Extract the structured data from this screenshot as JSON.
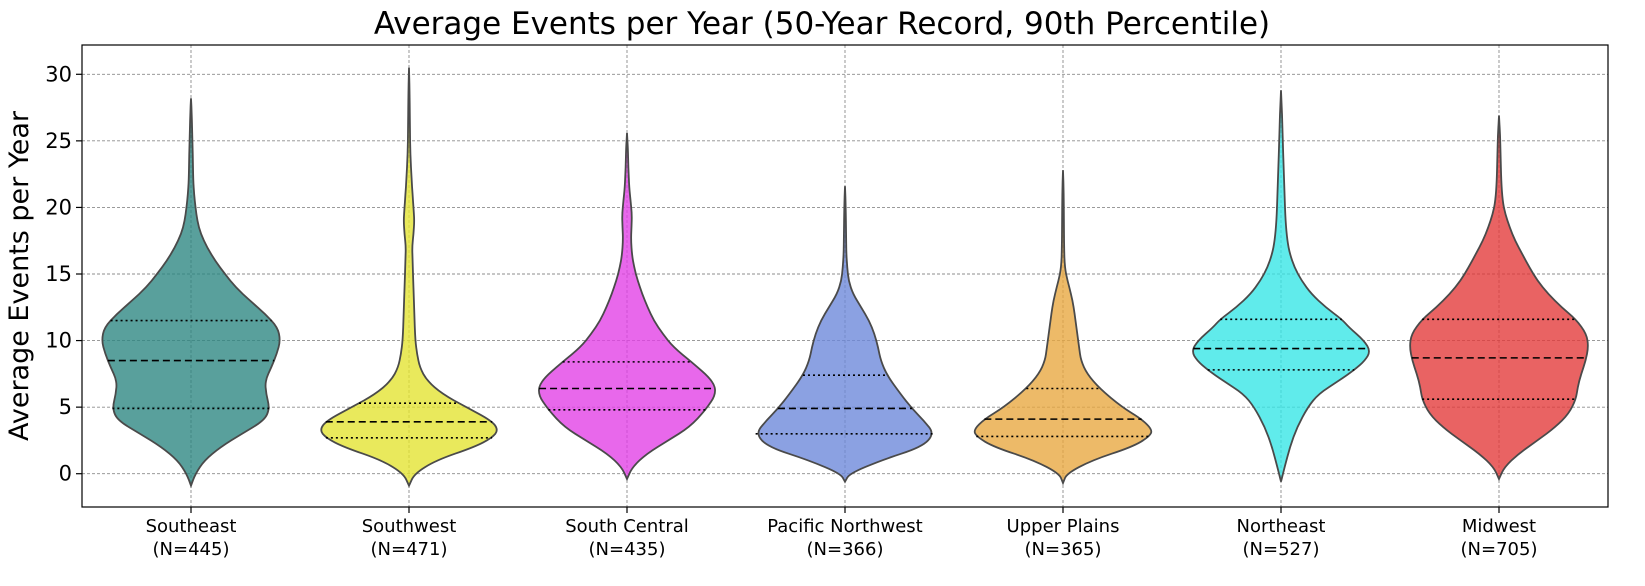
{
  "chart_data": {
    "type": "violin",
    "title": "Average Events per Year (50-Year Record, 90th Percentile)",
    "xlabel": "",
    "ylabel": "Average Events per Year",
    "ylim": [
      -2.5,
      32.2
    ],
    "yticks": [
      0,
      5,
      10,
      15,
      20,
      25,
      30
    ],
    "grid": true,
    "legend": "none",
    "categories": [
      {
        "name": "Southeast",
        "n_label": "(N=445)",
        "color": "#2a8580",
        "min": -0.9,
        "max": 28.2,
        "q1": 4.9,
        "median": 8.5,
        "q3": 11.5,
        "profile": [
          [
            -0.9,
            0
          ],
          [
            0,
            0.05
          ],
          [
            1,
            0.15
          ],
          [
            2,
            0.33
          ],
          [
            3,
            0.57
          ],
          [
            4,
            0.82
          ],
          [
            4.9,
            0.88
          ],
          [
            6,
            0.84
          ],
          [
            7,
            0.83
          ],
          [
            8,
            0.9
          ],
          [
            9,
            0.96
          ],
          [
            10,
            1.0
          ],
          [
            11,
            0.97
          ],
          [
            12,
            0.83
          ],
          [
            13,
            0.66
          ],
          [
            14,
            0.5
          ],
          [
            15,
            0.38
          ],
          [
            16,
            0.27
          ],
          [
            17,
            0.18
          ],
          [
            18,
            0.11
          ],
          [
            19,
            0.07
          ],
          [
            20,
            0.05
          ],
          [
            21,
            0.035
          ],
          [
            22,
            0.025
          ],
          [
            24,
            0.02
          ],
          [
            26,
            0.012
          ],
          [
            27,
            0.008
          ],
          [
            28.2,
            0
          ]
        ]
      },
      {
        "name": "Southwest",
        "n_label": "(N=471)",
        "color": "#e3e32e",
        "min": -0.9,
        "max": 30.5,
        "q1": 2.7,
        "median": 3.9,
        "q3": 5.3,
        "profile": [
          [
            -0.9,
            0
          ],
          [
            0,
            0.06
          ],
          [
            1,
            0.3
          ],
          [
            2,
            0.73
          ],
          [
            2.7,
            0.93
          ],
          [
            3.3,
            1.0
          ],
          [
            4,
            0.92
          ],
          [
            5,
            0.64
          ],
          [
            6,
            0.37
          ],
          [
            7,
            0.2
          ],
          [
            8,
            0.12
          ],
          [
            9,
            0.09
          ],
          [
            10,
            0.07
          ],
          [
            12,
            0.06
          ],
          [
            14,
            0.05
          ],
          [
            16,
            0.04
          ],
          [
            17,
            0.035
          ],
          [
            18,
            0.05
          ],
          [
            19,
            0.06
          ],
          [
            20,
            0.05
          ],
          [
            21,
            0.04
          ],
          [
            22,
            0.03
          ],
          [
            24,
            0.015
          ],
          [
            26,
            0.01
          ],
          [
            28,
            0.008
          ],
          [
            30.5,
            0
          ]
        ]
      },
      {
        "name": "South Central",
        "n_label": "(N=435)",
        "color": "#e13de5",
        "min": -0.4,
        "max": 25.6,
        "q1": 4.8,
        "median": 6.4,
        "q3": 8.4,
        "profile": [
          [
            -0.4,
            0
          ],
          [
            0.5,
            0.06
          ],
          [
            1.5,
            0.22
          ],
          [
            2.5,
            0.46
          ],
          [
            3.5,
            0.7
          ],
          [
            4.8,
            0.88
          ],
          [
            6,
            1.0
          ],
          [
            7,
            0.96
          ],
          [
            8.4,
            0.72
          ],
          [
            9.5,
            0.52
          ],
          [
            10.5,
            0.4
          ],
          [
            11.5,
            0.3
          ],
          [
            12.5,
            0.23
          ],
          [
            13.5,
            0.17
          ],
          [
            14.5,
            0.12
          ],
          [
            15.5,
            0.08
          ],
          [
            16.5,
            0.055
          ],
          [
            17.5,
            0.045
          ],
          [
            18.5,
            0.05
          ],
          [
            19.5,
            0.055
          ],
          [
            20.5,
            0.04
          ],
          [
            21.5,
            0.025
          ],
          [
            23,
            0.015
          ],
          [
            24.5,
            0.01
          ],
          [
            25.6,
            0
          ]
        ]
      },
      {
        "name": "Pacific Northwest",
        "n_label": "(N=366)",
        "color": "#6a86da",
        "min": -0.6,
        "max": 21.6,
        "q1": 3.0,
        "median": 4.9,
        "q3": 7.4,
        "profile": [
          [
            -0.6,
            0
          ],
          [
            0,
            0.05
          ],
          [
            1,
            0.4
          ],
          [
            2,
            0.86
          ],
          [
            3,
            1.0
          ],
          [
            4,
            0.88
          ],
          [
            4.9,
            0.75
          ],
          [
            6,
            0.62
          ],
          [
            7.4,
            0.47
          ],
          [
            8.5,
            0.4
          ],
          [
            9.5,
            0.37
          ],
          [
            10.5,
            0.33
          ],
          [
            11.5,
            0.27
          ],
          [
            12.5,
            0.18
          ],
          [
            13.5,
            0.09
          ],
          [
            14.5,
            0.04
          ],
          [
            15.5,
            0.025
          ],
          [
            16.5,
            0.015
          ],
          [
            18,
            0.012
          ],
          [
            20,
            0.008
          ],
          [
            21.6,
            0
          ]
        ]
      },
      {
        "name": "Upper Plains",
        "n_label": "(N=365)",
        "color": "#e8a73d",
        "min": -0.7,
        "max": 22.8,
        "q1": 2.8,
        "median": 4.1,
        "q3": 6.4,
        "profile": [
          [
            -0.7,
            0
          ],
          [
            0,
            0.04
          ],
          [
            1,
            0.32
          ],
          [
            2,
            0.77
          ],
          [
            2.8,
            0.97
          ],
          [
            3.3,
            1.0
          ],
          [
            4.1,
            0.88
          ],
          [
            5,
            0.66
          ],
          [
            6.4,
            0.41
          ],
          [
            7.5,
            0.27
          ],
          [
            8.5,
            0.2
          ],
          [
            9.5,
            0.18
          ],
          [
            10.5,
            0.16
          ],
          [
            11.5,
            0.14
          ],
          [
            12.5,
            0.12
          ],
          [
            13.5,
            0.09
          ],
          [
            14.5,
            0.05
          ],
          [
            15.5,
            0.02
          ],
          [
            17,
            0.012
          ],
          [
            19,
            0.01
          ],
          [
            21,
            0.008
          ],
          [
            22.8,
            0
          ]
        ]
      },
      {
        "name": "Northeast",
        "n_label": "(N=527)",
        "color": "#33e5e5",
        "min": -0.6,
        "max": 28.8,
        "q1": 7.8,
        "median": 9.4,
        "q3": 11.6,
        "profile": [
          [
            -0.6,
            0
          ],
          [
            0.5,
            0.04
          ],
          [
            2,
            0.1
          ],
          [
            3.5,
            0.18
          ],
          [
            5,
            0.3
          ],
          [
            6,
            0.42
          ],
          [
            7,
            0.65
          ],
          [
            7.8,
            0.82
          ],
          [
            8.5,
            0.94
          ],
          [
            9.2,
            1.0
          ],
          [
            10,
            0.93
          ],
          [
            11,
            0.76
          ],
          [
            11.6,
            0.68
          ],
          [
            12.5,
            0.5
          ],
          [
            13.5,
            0.34
          ],
          [
            14.5,
            0.23
          ],
          [
            15.5,
            0.15
          ],
          [
            16.5,
            0.1
          ],
          [
            17.5,
            0.07
          ],
          [
            19,
            0.05
          ],
          [
            21,
            0.04
          ],
          [
            23,
            0.03
          ],
          [
            25,
            0.02
          ],
          [
            27,
            0.012
          ],
          [
            28.8,
            0
          ]
        ]
      },
      {
        "name": "Midwest",
        "n_label": "(N=705)",
        "color": "#e33737",
        "min": -0.4,
        "max": 26.9,
        "q1": 5.6,
        "median": 8.7,
        "q3": 11.6,
        "profile": [
          [
            -0.4,
            0
          ],
          [
            0.5,
            0.06
          ],
          [
            1.5,
            0.22
          ],
          [
            2.5,
            0.43
          ],
          [
            3.5,
            0.63
          ],
          [
            4.5,
            0.78
          ],
          [
            5.6,
            0.86
          ],
          [
            6.5,
            0.88
          ],
          [
            7.5,
            0.92
          ],
          [
            8.5,
            0.97
          ],
          [
            9.5,
            1.0
          ],
          [
            10.5,
            0.98
          ],
          [
            11.6,
            0.86
          ],
          [
            12.5,
            0.7
          ],
          [
            13.5,
            0.55
          ],
          [
            14.5,
            0.43
          ],
          [
            15.5,
            0.34
          ],
          [
            16.5,
            0.26
          ],
          [
            17.5,
            0.18
          ],
          [
            18.5,
            0.12
          ],
          [
            19.5,
            0.07
          ],
          [
            20.5,
            0.04
          ],
          [
            22,
            0.025
          ],
          [
            24,
            0.018
          ],
          [
            25.5,
            0.012
          ],
          [
            26.9,
            0
          ]
        ]
      }
    ]
  }
}
